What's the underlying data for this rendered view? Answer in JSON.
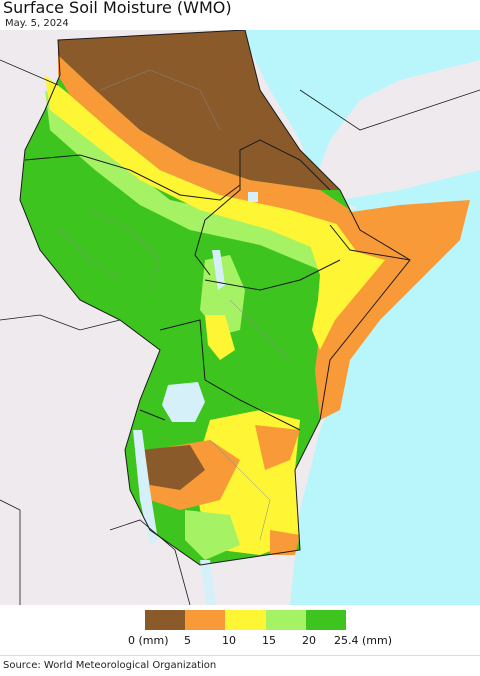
{
  "title": "Surface Soil Moisture (WMO)",
  "date": "May. 5, 2024",
  "source": "Source: World Meteorological Organization",
  "legend": {
    "colors": [
      "#8b5a2b",
      "#f99a38",
      "#fef534",
      "#a5f265",
      "#3ec41e"
    ],
    "labels": [
      "0 (mm)",
      "5",
      "10",
      "15",
      "20",
      "25.4 (mm)"
    ]
  },
  "map_colors": {
    "land_outside": "#efeaee",
    "sea": "#b8f6fb",
    "lake": "#d6f0fa",
    "border": "#1a1a1a",
    "admin_border": "#777777"
  }
}
